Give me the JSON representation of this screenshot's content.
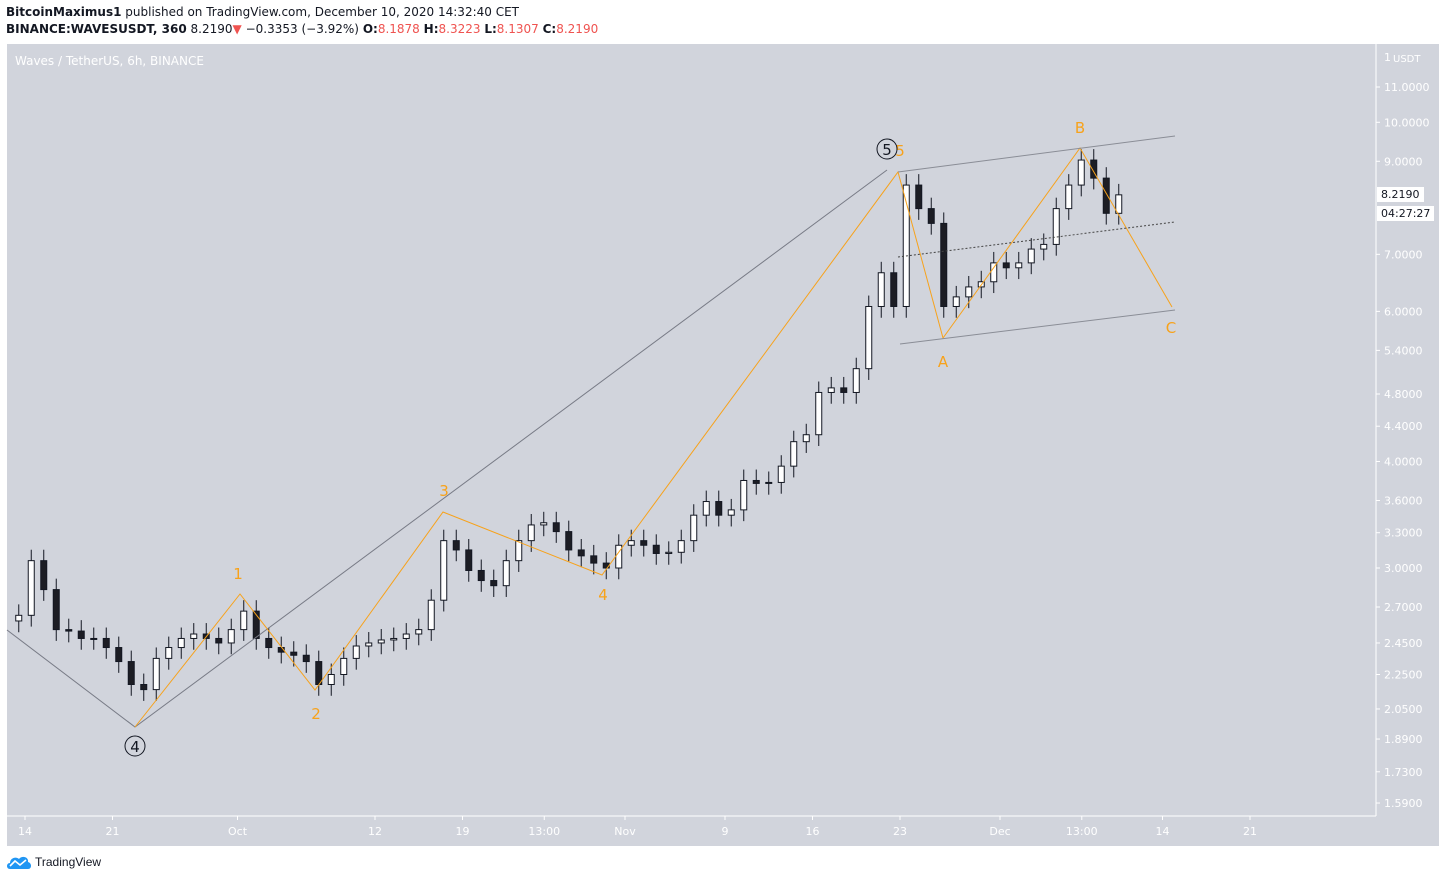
{
  "header": {
    "author": "BitcoinMaximus1",
    "published_text": "published on TradingView.com, December 10, 2020 14:32:40 CET",
    "symbol": "BINANCE:WAVESUSDT, 360",
    "last": "8.2190",
    "change_icon": "triangle-down-icon",
    "change": "−0.3353 (−3.92%)",
    "o_label": "O:",
    "o": "8.1878",
    "h_label": "H:",
    "h": "8.3223",
    "l_label": "L:",
    "l": "8.1307",
    "c_label": "C:",
    "c": "8.2190"
  },
  "colors": {
    "background": "#d1d4dc",
    "wave": "#f7a21b",
    "down": "#ef5350",
    "candle_down": "#1c1d24",
    "candle_up": "#ffffff",
    "trendline": "#787b86"
  },
  "footer": {
    "brand": "TradingView",
    "logo_icon": "tradingview-cloud-icon"
  },
  "chart_data": {
    "type": "candlestick",
    "title": "Waves / TetherUS, 6h, BINANCE",
    "y_scale": "log",
    "y_unit": "USDT",
    "y_unit_prefix": "1",
    "ylim": [
      1.52,
      12.0
    ],
    "grid": false,
    "y_ticks": [
      "11.0000",
      "10.0000",
      "9.0000",
      "7.0000",
      "6.0000",
      "5.4000",
      "4.8000",
      "4.4000",
      "4.0000",
      "3.6000",
      "3.3000",
      "3.0000",
      "2.7000",
      "2.4500",
      "2.2500",
      "2.0500",
      "1.8900",
      "1.7300",
      "1.5900"
    ],
    "x_ticks": [
      {
        "label": "14",
        "date": "2020-09-14"
      },
      {
        "label": "21",
        "date": "2020-09-21"
      },
      {
        "label": "Oct",
        "date": "2020-10-01"
      },
      {
        "label": "12",
        "date": "2020-10-12"
      },
      {
        "label": "19",
        "date": "2020-10-19"
      },
      {
        "label": "13:00",
        "date": "2020-10-25T13:00"
      },
      {
        "label": "Nov",
        "date": "2020-11-01"
      },
      {
        "label": "9",
        "date": "2020-11-09"
      },
      {
        "label": "16",
        "date": "2020-11-16"
      },
      {
        "label": "23",
        "date": "2020-11-23"
      },
      {
        "label": "Dec",
        "date": "2020-12-01"
      },
      {
        "label": "13:00",
        "date": "2020-12-07T13:00"
      },
      {
        "label": "14",
        "date": "2020-12-14"
      },
      {
        "label": "21",
        "date": "2020-12-21"
      }
    ],
    "start_date": "2020-09-13",
    "first_open": 2.6,
    "daily_closes": [
      2.64,
      3.06,
      2.83,
      2.54,
      2.53,
      2.48,
      2.48,
      2.42,
      2.33,
      2.19,
      2.16,
      2.35,
      2.42,
      2.48,
      2.51,
      2.48,
      2.45,
      2.54,
      2.67,
      2.48,
      2.42,
      2.39,
      2.37,
      2.33,
      2.19,
      2.25,
      2.35,
      2.43,
      2.45,
      2.47,
      2.48,
      2.51,
      2.54,
      2.75,
      3.23,
      3.15,
      2.98,
      2.9,
      2.86,
      3.06,
      3.23,
      3.37,
      3.39,
      3.31,
      3.15,
      3.1,
      3.04,
      3.0,
      3.19,
      3.23,
      3.19,
      3.12,
      3.13,
      3.23,
      3.46,
      3.59,
      3.46,
      3.51,
      3.8,
      3.77,
      3.78,
      3.95,
      4.22,
      4.3,
      4.82,
      4.88,
      4.82,
      5.14,
      6.08,
      6.66,
      6.08,
      8.44,
      7.92,
      7.61,
      6.08,
      6.24,
      6.41,
      6.5,
      6.84,
      6.75,
      6.84,
      7.1,
      7.19,
      7.92,
      8.44,
      9.03,
      8.6,
      7.82,
      8.22
    ],
    "last_price_label": "8.2190",
    "countdown_label": "04:27:27",
    "annotations": {
      "primary_4": "4",
      "primary_5": "5",
      "w1": "1",
      "w2": "2",
      "w3": "3",
      "w4": "4",
      "w5": "5",
      "wA": "A",
      "wB": "B",
      "wC": "C"
    }
  }
}
